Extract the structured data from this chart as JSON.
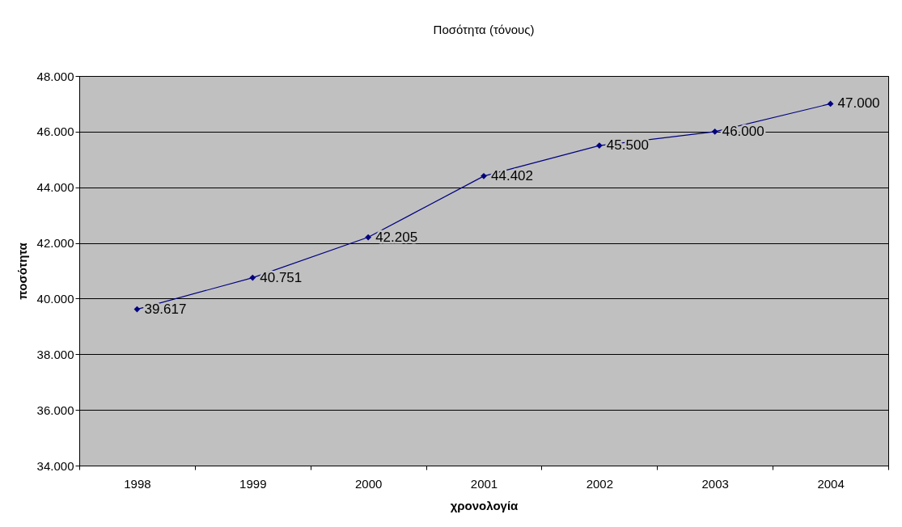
{
  "chart_data": {
    "type": "line",
    "title": "Ποσότητα (τόνους)",
    "xlabel": "χρονολογία",
    "ylabel": "ποσότητα",
    "categories": [
      "1998",
      "1999",
      "2000",
      "2001",
      "2002",
      "2003",
      "2004"
    ],
    "series": [
      {
        "color": "#000080",
        "values": [
          39617,
          40751,
          42205,
          44402,
          45500,
          46000,
          47000
        ],
        "value_labels": [
          "39.617",
          "40.751",
          "42.205",
          "44.402",
          "45.500",
          "46.000",
          "47.000"
        ]
      }
    ],
    "ylim": [
      34000,
      48000
    ],
    "yticks": [
      {
        "value": 34000,
        "label": "34.000"
      },
      {
        "value": 36000,
        "label": "36.000"
      },
      {
        "value": 38000,
        "label": "38.000"
      },
      {
        "value": 40000,
        "label": "40.000"
      },
      {
        "value": 42000,
        "label": "42.000"
      },
      {
        "value": 44000,
        "label": "44.000"
      },
      {
        "value": 46000,
        "label": "46.000"
      },
      {
        "value": 48000,
        "label": "48.000"
      }
    ],
    "grid": "y",
    "marker": "diamond",
    "line_style": "solid"
  }
}
